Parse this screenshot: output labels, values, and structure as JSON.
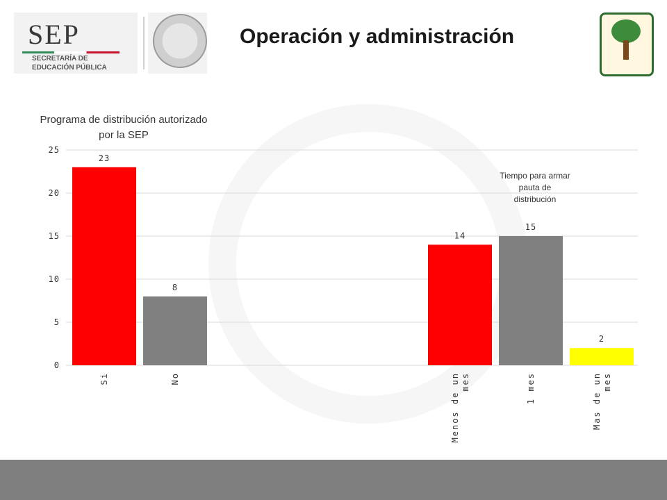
{
  "header": {
    "logo_text": "SEP",
    "logo_subtitle_1": "SECRETARÍA DE",
    "logo_subtitle_2": "EDUCACIÓN PÚBLICA",
    "page_title": "Operación y administración"
  },
  "colors": {
    "red": "#ff0000",
    "gray": "#808080",
    "yellow": "#ffff00",
    "footer": "#7f7f7f"
  },
  "chart_data": {
    "type": "bar",
    "ylim": [
      0,
      25
    ],
    "yticks": [
      0,
      5,
      10,
      15,
      20,
      25
    ],
    "grid": true,
    "groups": [
      {
        "title_lines": [
          "Programa de distribución autorizado",
          "por la SEP"
        ],
        "categories": [
          "Si",
          "No"
        ],
        "values": [
          23,
          8
        ],
        "colors": [
          "#ff0000",
          "#808080"
        ]
      },
      {
        "title_lines": [
          "Tiempo para armar",
          "pauta de",
          "distribución"
        ],
        "categories": [
          [
            "Menos de un",
            "mes"
          ],
          [
            "1 mes"
          ],
          [
            "Mas de un",
            "mes"
          ]
        ],
        "values": [
          14,
          15,
          2
        ],
        "colors": [
          "#ff0000",
          "#808080",
          "#ffff00"
        ]
      }
    ]
  }
}
